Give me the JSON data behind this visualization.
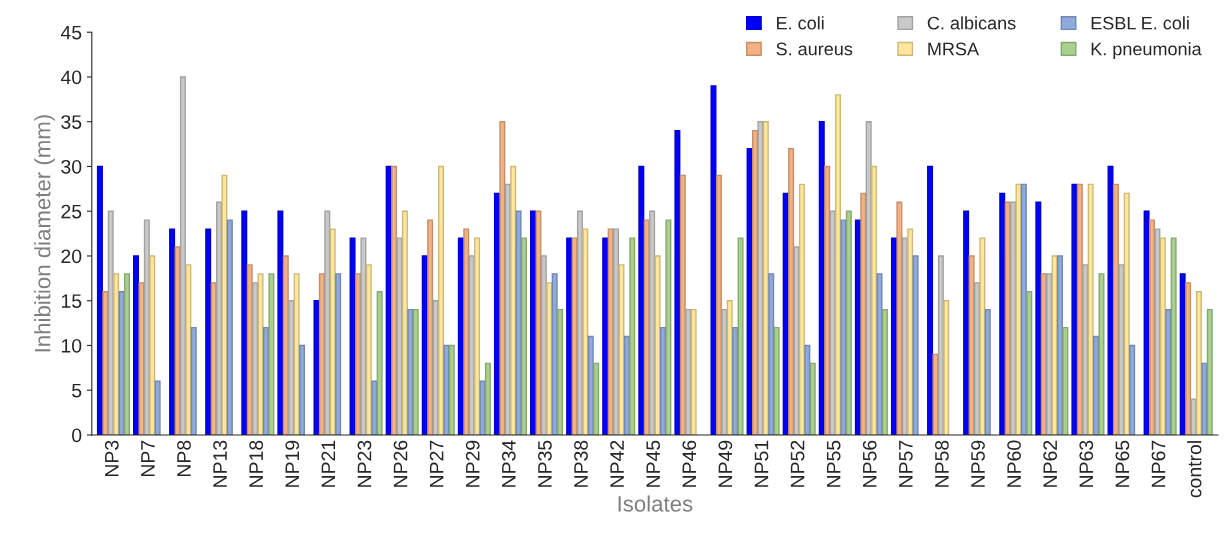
{
  "chart_data": {
    "type": "bar",
    "xlabel": "Isolates",
    "ylabel": "Inhibition diameter (mm)",
    "categories": [
      "NP3",
      "NP7",
      "NP8",
      "NP13",
      "NP18",
      "NP19",
      "NP21",
      "NP23",
      "NP26",
      "NP27",
      "NP29",
      "NP34",
      "NP35",
      "NP38",
      "NP42",
      "NP45",
      "NP46",
      "NP49",
      "NP51",
      "NP52",
      "NP55",
      "NP56",
      "NP57",
      "NP58",
      "NP59",
      "NP60",
      "NP62",
      "NP63",
      "NP65",
      "NP67",
      "control"
    ],
    "series": [
      {
        "name": "E. coli",
        "color": "#0000ff",
        "values": [
          30,
          20,
          23,
          23,
          25,
          25,
          15,
          22,
          30,
          20,
          22,
          27,
          25,
          22,
          22,
          30,
          34,
          39,
          32,
          27,
          35,
          24,
          22,
          30,
          25,
          27,
          26,
          28,
          30,
          25,
          18
        ]
      },
      {
        "name": "S. aureus",
        "color": "#f4b183",
        "values": [
          16,
          17,
          21,
          17,
          19,
          20,
          18,
          18,
          30,
          24,
          23,
          35,
          25,
          22,
          23,
          24,
          29,
          29,
          34,
          32,
          30,
          27,
          26,
          9,
          20,
          26,
          18,
          28,
          28,
          24,
          17
        ]
      },
      {
        "name": "C. albicans",
        "color": "#c9c9c9",
        "values": [
          25,
          24,
          40,
          26,
          17,
          15,
          25,
          22,
          22,
          15,
          20,
          28,
          20,
          25,
          23,
          25,
          14,
          14,
          35,
          21,
          25,
          35,
          22,
          20,
          17,
          26,
          18,
          19,
          19,
          23,
          4
        ]
      },
      {
        "name": "MRSA",
        "color": "#ffe699",
        "values": [
          18,
          20,
          19,
          29,
          18,
          18,
          23,
          19,
          25,
          30,
          22,
          30,
          17,
          23,
          19,
          20,
          14,
          15,
          35,
          28,
          38,
          30,
          23,
          15,
          22,
          28,
          20,
          28,
          27,
          22,
          16
        ]
      },
      {
        "name": "ESBL E. coli",
        "color": "#8faadc",
        "values": [
          16,
          6,
          12,
          24,
          12,
          10,
          18,
          6,
          14,
          10,
          6,
          25,
          18,
          11,
          11,
          12,
          null,
          12,
          18,
          10,
          24,
          18,
          20,
          null,
          14,
          28,
          20,
          11,
          10,
          14,
          8
        ]
      },
      {
        "name": "K. pneumonia",
        "color": "#a9d18e",
        "values": [
          18,
          null,
          null,
          null,
          18,
          null,
          null,
          16,
          14,
          10,
          8,
          22,
          14,
          8,
          22,
          24,
          null,
          22,
          12,
          8,
          25,
          14,
          null,
          null,
          null,
          16,
          12,
          18,
          null,
          22,
          14
        ]
      }
    ],
    "ylim": [
      0,
      45
    ],
    "yticks": [
      0,
      5,
      10,
      15,
      20,
      25,
      30,
      35,
      40,
      45
    ],
    "grid": false,
    "legend": "top right"
  }
}
